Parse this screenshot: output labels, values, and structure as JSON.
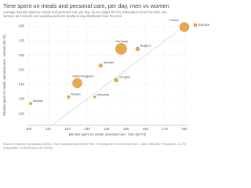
{
  "chart_data": {
    "type": "scatter",
    "title": "Time spent on meals and personal care, per day, men vs women",
    "subtitle": [
      "Average minutes spent on meals and personal care per day, by sex (ages 20-74). Estimated come from time use",
      "surveys and include one weekday and one weekend day distributed over the year."
    ],
    "x_label": "Minutes spent on meals, personal care - men (20-74)",
    "y_label": "Minutes spent on meals, personal care - women (20-74)",
    "source": [
      "Source: European Commission (2004) - How Europeans spend their time - Everyday life of women and men - Data 1998-2002. Population - CC BY",
      "(Gapminder, HYDE(2016) & UN (2019))"
    ],
    "xlim": [
      99,
      182
    ],
    "xticks": [
      100,
      110,
      120,
      130,
      140,
      150,
      160,
      170,
      180
    ],
    "ylim": [
      112,
      183
    ],
    "yticks": [
      120,
      130,
      140,
      150,
      160,
      170,
      180
    ],
    "grid": true,
    "series": [
      {
        "name": "Europe",
        "color": "#e39c2f",
        "labels": [
          "France",
          "Germany",
          "Belgium",
          "Sweden",
          "United Kingdom",
          "Hungary",
          "Finland",
          "Lithuania",
          "Norway"
        ],
        "x": [
          180,
          147.5,
          156,
          137,
          125,
          145,
          120.5,
          134,
          101
        ],
        "values": [
          179.5,
          164.5,
          164.5,
          153,
          141,
          143,
          131.5,
          131.5,
          127
        ],
        "sizes": [
          59,
          82,
          10,
          9,
          59,
          10,
          5,
          3.5,
          4.5
        ]
      }
    ]
  }
}
